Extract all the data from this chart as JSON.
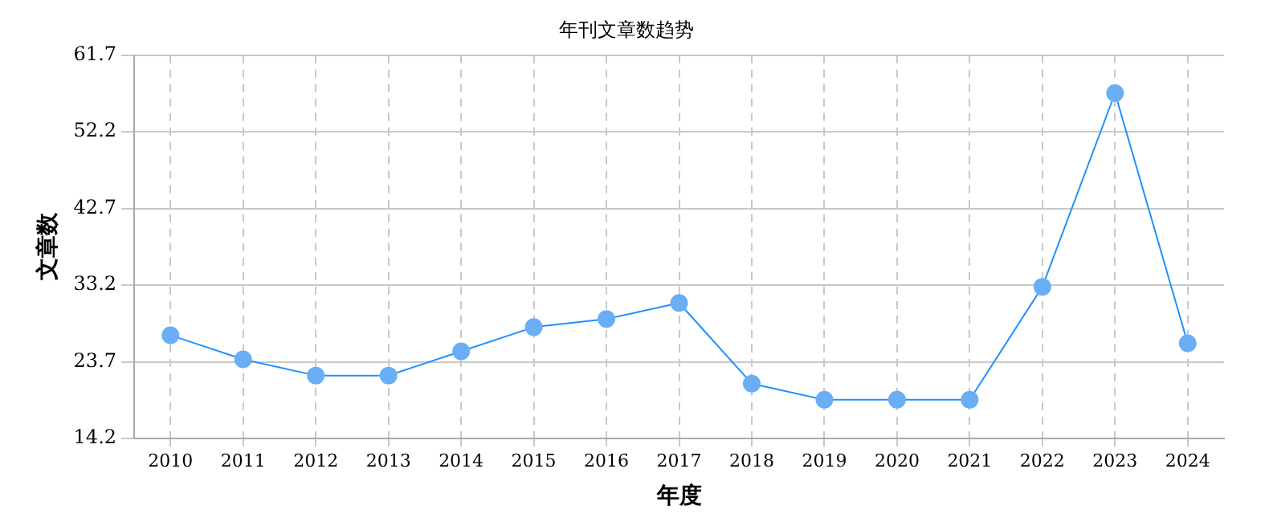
{
  "chart_data": {
    "type": "line",
    "title": "年刊文章数趋势",
    "xlabel": "年度",
    "ylabel": "文章数",
    "categories": [
      "2010",
      "2011",
      "2012",
      "2013",
      "2014",
      "2015",
      "2016",
      "2017",
      "2018",
      "2019",
      "2020",
      "2021",
      "2022",
      "2023",
      "2024"
    ],
    "series": [
      {
        "color": "#1e90ff",
        "values": [
          27,
          24,
          22,
          22,
          25,
          28,
          29,
          31,
          21,
          19,
          19,
          19,
          33,
          57,
          26
        ]
      }
    ],
    "ylim": [
      14.2,
      61.7
    ],
    "yticks": [
      14.2,
      23.7,
      33.2,
      42.7,
      52.2,
      61.7
    ],
    "grid": true,
    "legend": false,
    "marker": "circle",
    "line_style": "solid"
  }
}
